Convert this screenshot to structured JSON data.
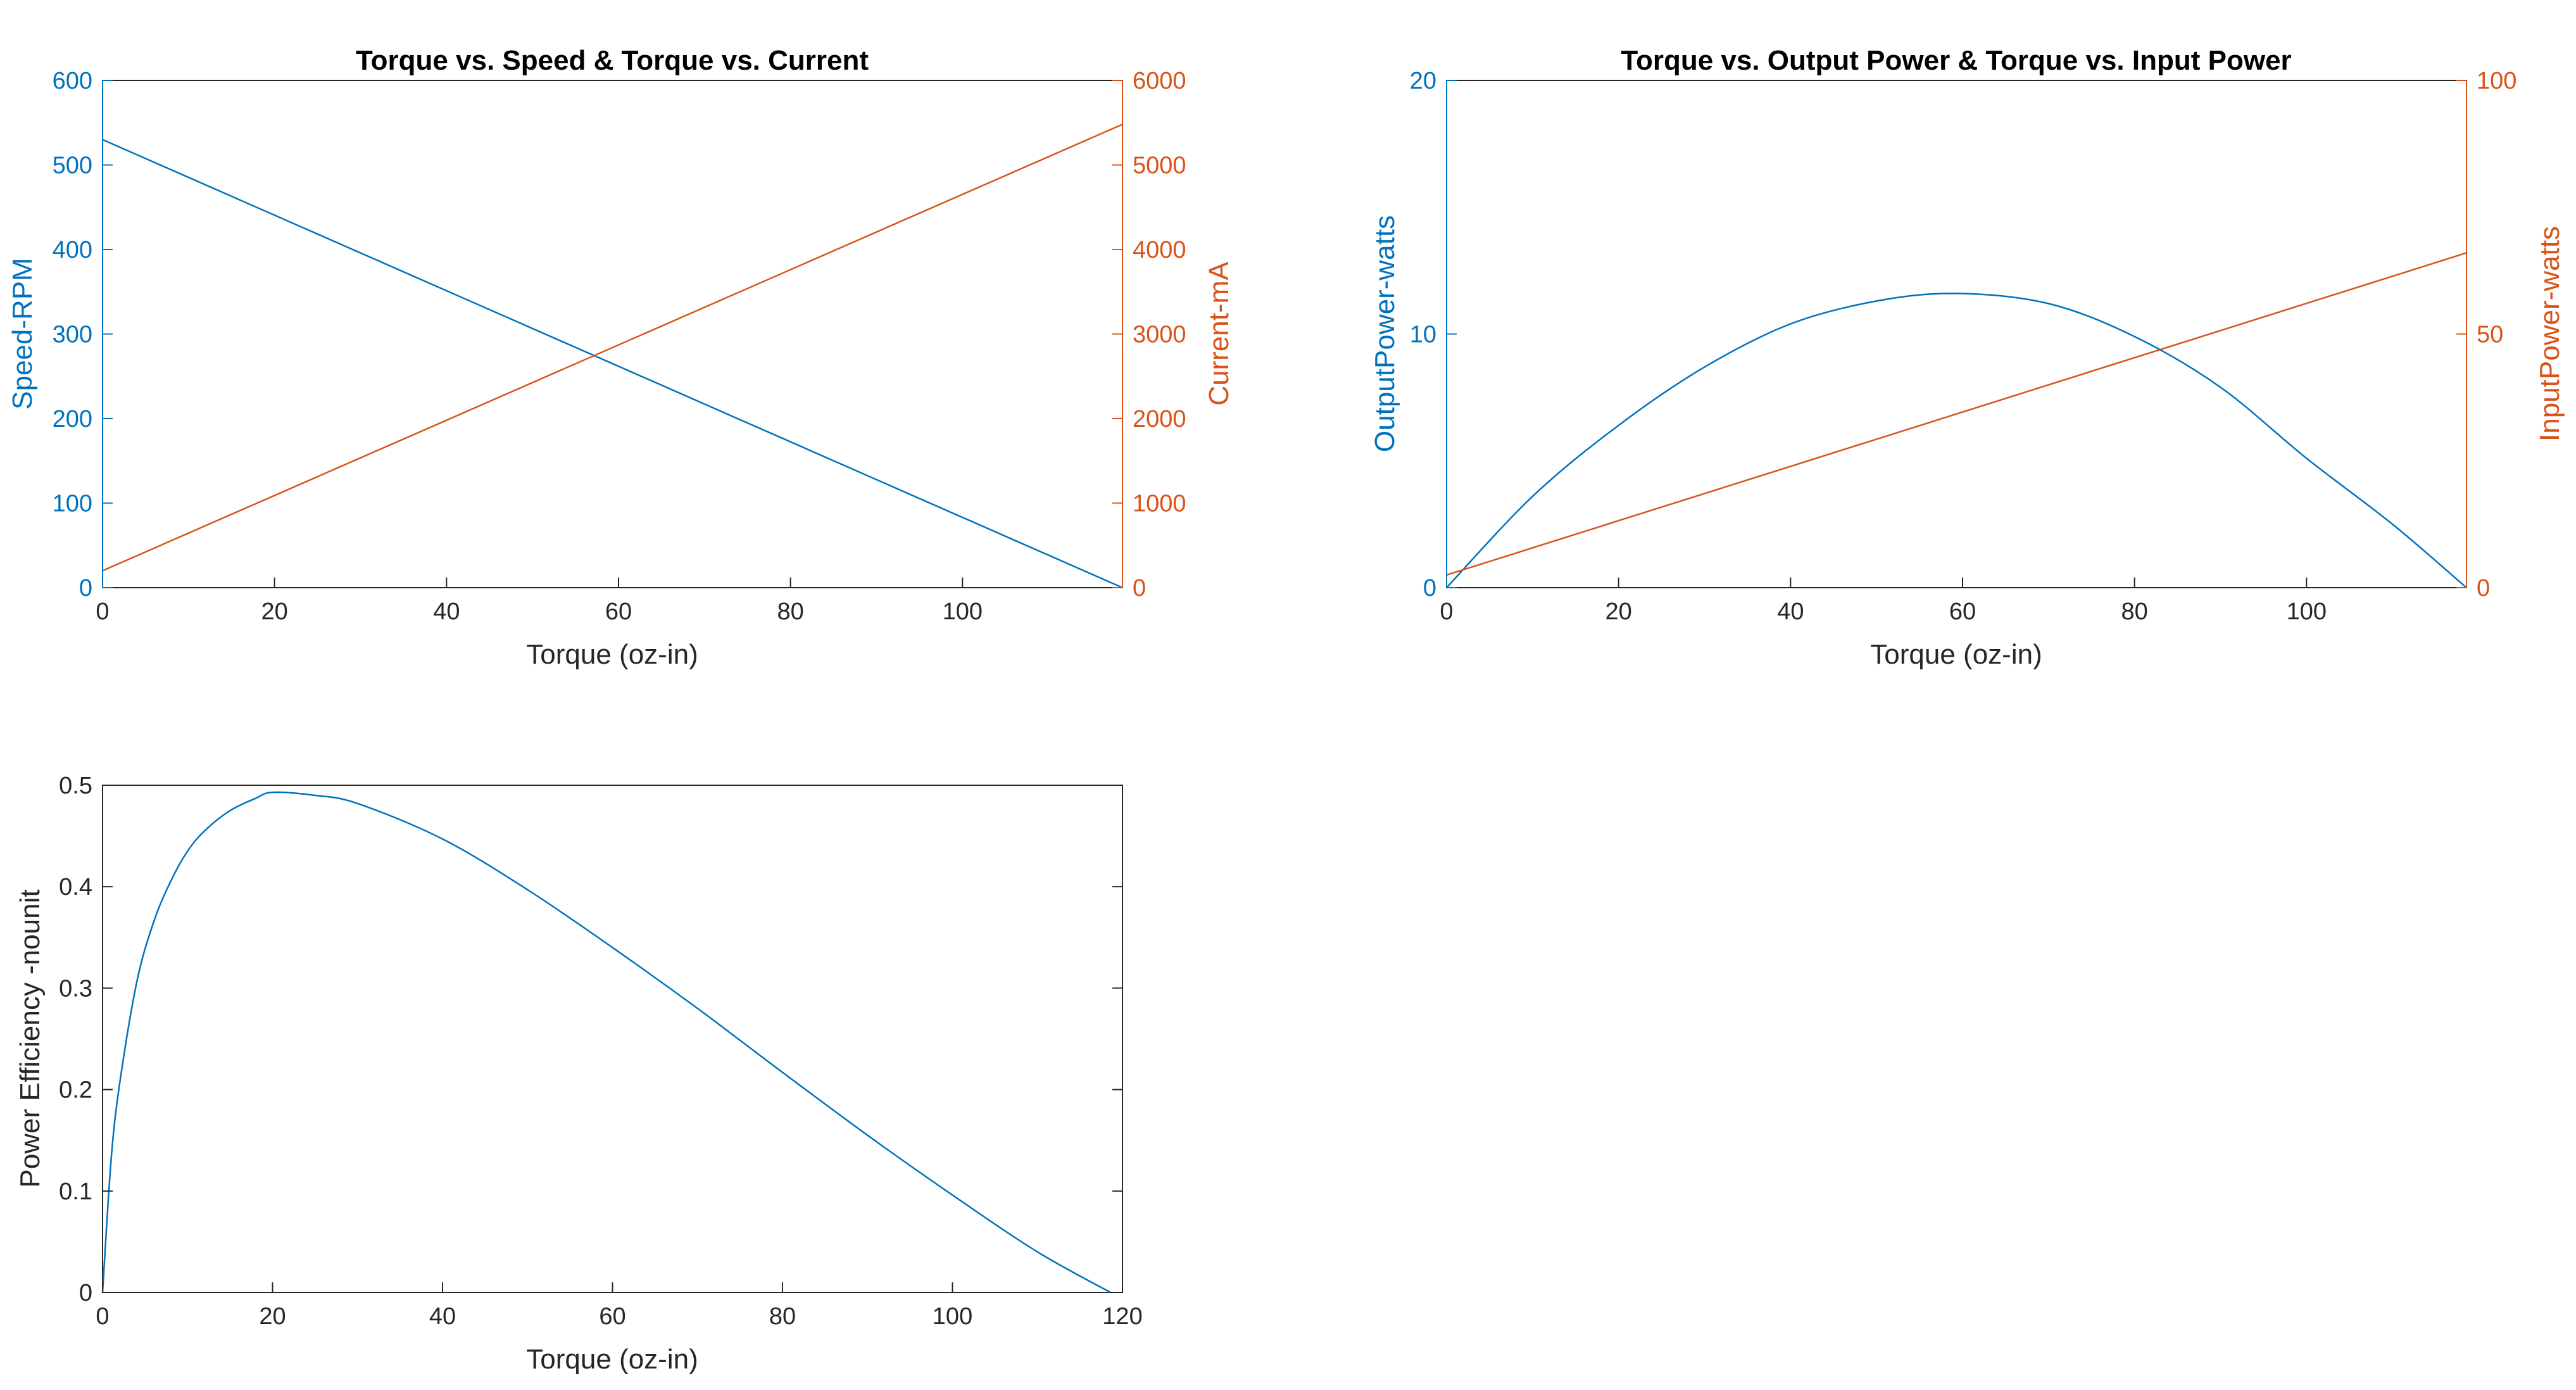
{
  "colors": {
    "primary": "#0072BD",
    "secondary": "#D95319",
    "axis": "#262626",
    "background": "#ffffff"
  },
  "chart_data": [
    {
      "type": "line",
      "title": "Torque vs. Speed & Torque vs. Current",
      "xlabel": "Torque (oz-in)",
      "xlim": [
        0,
        118.6
      ],
      "xticks": [
        0,
        20,
        40,
        60,
        80,
        100
      ],
      "left_axis": {
        "label": "Speed-RPM",
        "ylim": [
          0,
          600
        ],
        "ticks": [
          0,
          100,
          200,
          300,
          400,
          500,
          600
        ]
      },
      "right_axis": {
        "label": "Current-mA",
        "ylim": [
          0,
          6000
        ],
        "ticks": [
          0,
          1000,
          2000,
          3000,
          4000,
          5000,
          6000
        ]
      },
      "grid": false,
      "series": [
        {
          "axis": "left",
          "color": "#0072BD",
          "x": [
            0,
            118.6
          ],
          "y": [
            530,
            0
          ]
        },
        {
          "axis": "right",
          "color": "#D95319",
          "x": [
            0,
            118.6
          ],
          "y": [
            200,
            5480
          ]
        }
      ]
    },
    {
      "type": "line",
      "title": "Torque vs. Output Power & Torque vs. Input Power",
      "xlabel": "Torque (oz-in)",
      "xlim": [
        0,
        118.6
      ],
      "xticks": [
        0,
        20,
        40,
        60,
        80,
        100
      ],
      "left_axis": {
        "label": "OutputPower-watts",
        "ylim": [
          0,
          20
        ],
        "ticks": [
          0,
          10,
          20
        ]
      },
      "right_axis": {
        "label": "InputPower-watts",
        "ylim": [
          0,
          100
        ],
        "ticks": [
          0,
          50,
          100
        ]
      },
      "grid": false,
      "series": [
        {
          "axis": "left",
          "color": "#0072BD",
          "x": [
            0,
            10,
            20,
            30,
            40,
            50,
            59.3,
            70,
            80,
            90,
            100,
            110,
            118.6
          ],
          "y": [
            0,
            3.6,
            6.4,
            8.7,
            10.4,
            11.3,
            11.6,
            11.2,
            9.9,
            7.9,
            5.1,
            2.5,
            0
          ]
        },
        {
          "axis": "right",
          "color": "#D95319",
          "x": [
            0,
            118.6
          ],
          "y": [
            2.5,
            66
          ]
        }
      ]
    },
    {
      "type": "line",
      "title": "",
      "xlabel": "Torque (oz-in)",
      "xlim": [
        0,
        120
      ],
      "xticks": [
        0,
        20,
        40,
        60,
        80,
        100,
        120
      ],
      "left_axis": {
        "label": "Power Efficiency -nounit",
        "ylim": [
          0,
          0.5
        ],
        "ticks": [
          0,
          0.1,
          0.2,
          0.3,
          0.4,
          0.5
        ]
      },
      "grid": false,
      "series": [
        {
          "axis": "left",
          "color": "#0072BD",
          "x": [
            0,
            1,
            2,
            4,
            6,
            8,
            10,
            12,
            15,
            18,
            20,
            25,
            30,
            40,
            50,
            60,
            70,
            80,
            90,
            100,
            110,
            118.6
          ],
          "y": [
            0,
            0.13,
            0.205,
            0.305,
            0.365,
            0.405,
            0.435,
            0.455,
            0.475,
            0.487,
            0.493,
            0.49,
            0.482,
            0.447,
            0.397,
            0.34,
            0.28,
            0.217,
            0.155,
            0.096,
            0.04,
            0
          ]
        }
      ]
    }
  ]
}
